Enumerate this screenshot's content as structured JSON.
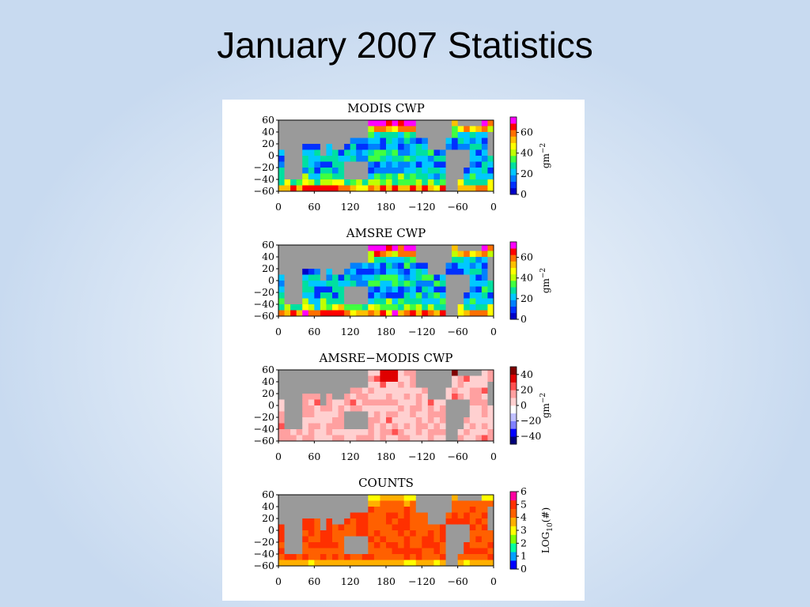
{
  "slide": {
    "title": "January 2007 Statistics"
  },
  "colors": {
    "land": "#9a9a9a",
    "cwp_scale": [
      "#0000c8",
      "#0030ff",
      "#0080ff",
      "#00c8ff",
      "#00e0a0",
      "#40ff40",
      "#c0ff00",
      "#ffff00",
      "#ffc000",
      "#ff7000",
      "#ff0000",
      "#ff00ff"
    ],
    "diff_scale": [
      "#00007a",
      "#0000ff",
      "#8080ff",
      "#c0c0ff",
      "#ffffff",
      "#ffd0d0",
      "#ffa0a0",
      "#ff5050",
      "#e00000",
      "#800000"
    ],
    "count_scale": [
      "#0000ff",
      "#00a0ff",
      "#00ffa0",
      "#80ff00",
      "#ffff00",
      "#ffb000",
      "#ff6000",
      "#ff3000",
      "#ff00a0"
    ]
  },
  "chart_data": [
    {
      "type": "heatmap",
      "title": "MODIS CWP",
      "field": "modis",
      "xticks": [
        "0",
        "60",
        "120",
        "180",
        "−120",
        "−60",
        "0"
      ],
      "yticks": [
        "60",
        "40",
        "20",
        "0",
        "−20",
        "−40",
        "−60"
      ],
      "xlim": [
        0,
        360
      ],
      "ylim": [
        -60,
        60
      ],
      "colorbar": {
        "ticks": [
          "0",
          "20",
          "40",
          "60"
        ],
        "range": [
          0,
          75
        ],
        "unit": "gm",
        "exponent": "−2"
      }
    },
    {
      "type": "heatmap",
      "title": "AMSRE CWP",
      "field": "amsre",
      "xticks": [
        "0",
        "60",
        "120",
        "180",
        "−120",
        "−60",
        "0"
      ],
      "yticks": [
        "60",
        "40",
        "20",
        "0",
        "−20",
        "−40",
        "−60"
      ],
      "xlim": [
        0,
        360
      ],
      "ylim": [
        -60,
        60
      ],
      "colorbar": {
        "ticks": [
          "0",
          "20",
          "40",
          "60"
        ],
        "range": [
          0,
          75
        ],
        "unit": "gm",
        "exponent": "−2"
      }
    },
    {
      "type": "heatmap",
      "title": "AMSRE−MODIS CWP",
      "field": "diff",
      "xticks": [
        "0",
        "60",
        "120",
        "180",
        "−120",
        "−60",
        "0"
      ],
      "yticks": [
        "60",
        "40",
        "20",
        "0",
        "−20",
        "−40",
        "−60"
      ],
      "xlim": [
        0,
        360
      ],
      "ylim": [
        -60,
        60
      ],
      "colorbar": {
        "ticks": [
          "−40",
          "−20",
          "0",
          "20",
          "40"
        ],
        "range": [
          -50,
          50
        ],
        "unit": "gm",
        "exponent": "−2"
      }
    },
    {
      "type": "heatmap",
      "title": "COUNTS",
      "field": "counts",
      "xticks": [
        "0",
        "60",
        "120",
        "180",
        "−120",
        "−60",
        "0"
      ],
      "yticks": [
        "60",
        "40",
        "20",
        "0",
        "−20",
        "−40",
        "−60"
      ],
      "xlim": [
        0,
        360
      ],
      "ylim": [
        -60,
        60
      ],
      "colorbar": {
        "ticks": [
          "0",
          "1",
          "2",
          "3",
          "4",
          "5",
          "6"
        ],
        "range": [
          0,
          6
        ],
        "unit": "LOG",
        "subscript": "10",
        "unit_suffix": "(#)"
      }
    }
  ]
}
